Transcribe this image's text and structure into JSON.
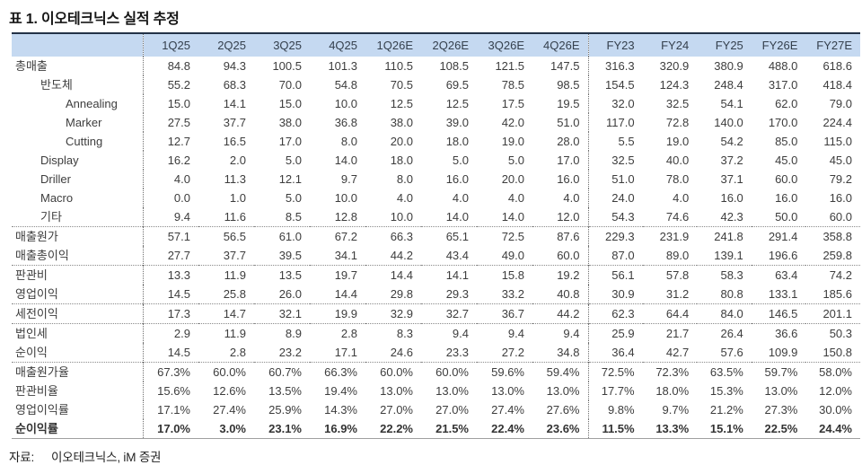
{
  "title": "표 1. 이오테크닉스 실적 추정",
  "colors": {
    "header_bg": "#c5d9f1",
    "top_border": "#233247"
  },
  "table": {
    "columns": [
      "",
      "1Q25",
      "2Q25",
      "3Q25",
      "4Q25",
      "1Q26E",
      "2Q26E",
      "3Q26E",
      "4Q26E",
      "FY23",
      "FY24",
      "FY25",
      "FY26E",
      "FY27E"
    ],
    "vertical_separator_after_columns": [
      0,
      8
    ],
    "rows": [
      {
        "label": "총매출",
        "indent": 0,
        "sep": false,
        "bold": false,
        "values": [
          "84.8",
          "94.3",
          "100.5",
          "101.3",
          "110.5",
          "108.5",
          "121.5",
          "147.5",
          "316.3",
          "320.9",
          "380.9",
          "488.0",
          "618.6"
        ]
      },
      {
        "label": "반도체",
        "indent": 1,
        "sep": false,
        "bold": false,
        "values": [
          "55.2",
          "68.3",
          "70.0",
          "54.8",
          "70.5",
          "69.5",
          "78.5",
          "98.5",
          "154.5",
          "124.3",
          "248.4",
          "317.0",
          "418.4"
        ]
      },
      {
        "label": "Annealing",
        "indent": 2,
        "sep": false,
        "bold": false,
        "values": [
          "15.0",
          "14.1",
          "15.0",
          "10.0",
          "12.5",
          "12.5",
          "17.5",
          "19.5",
          "32.0",
          "32.5",
          "54.1",
          "62.0",
          "79.0"
        ]
      },
      {
        "label": "Marker",
        "indent": 2,
        "sep": false,
        "bold": false,
        "values": [
          "27.5",
          "37.7",
          "38.0",
          "36.8",
          "38.0",
          "39.0",
          "42.0",
          "51.0",
          "117.0",
          "72.8",
          "140.0",
          "170.0",
          "224.4"
        ]
      },
      {
        "label": "Cutting",
        "indent": 2,
        "sep": false,
        "bold": false,
        "values": [
          "12.7",
          "16.5",
          "17.0",
          "8.0",
          "20.0",
          "18.0",
          "19.0",
          "28.0",
          "5.5",
          "19.0",
          "54.2",
          "85.0",
          "115.0"
        ]
      },
      {
        "label": "Display",
        "indent": 1,
        "sep": false,
        "bold": false,
        "values": [
          "16.2",
          "2.0",
          "5.0",
          "14.0",
          "18.0",
          "5.0",
          "5.0",
          "17.0",
          "32.5",
          "40.0",
          "37.2",
          "45.0",
          "45.0"
        ]
      },
      {
        "label": "Driller",
        "indent": 1,
        "sep": false,
        "bold": false,
        "values": [
          "4.0",
          "11.3",
          "12.1",
          "9.7",
          "8.0",
          "16.0",
          "20.0",
          "16.0",
          "51.0",
          "78.0",
          "37.1",
          "60.0",
          "79.2"
        ]
      },
      {
        "label": "Macro",
        "indent": 1,
        "sep": false,
        "bold": false,
        "values": [
          "0.0",
          "1.0",
          "5.0",
          "10.0",
          "4.0",
          "4.0",
          "4.0",
          "4.0",
          "24.0",
          "4.0",
          "16.0",
          "16.0",
          "16.0"
        ]
      },
      {
        "label": "기타",
        "indent": 1,
        "sep": false,
        "bold": false,
        "values": [
          "9.4",
          "11.6",
          "8.5",
          "12.8",
          "10.0",
          "14.0",
          "14.0",
          "12.0",
          "54.3",
          "74.6",
          "42.3",
          "50.0",
          "60.0"
        ]
      },
      {
        "label": "매출원가",
        "indent": 0,
        "sep": true,
        "bold": false,
        "values": [
          "57.1",
          "56.5",
          "61.0",
          "67.2",
          "66.3",
          "65.1",
          "72.5",
          "87.6",
          "229.3",
          "231.9",
          "241.8",
          "291.4",
          "358.8"
        ]
      },
      {
        "label": "매출총이익",
        "indent": 0,
        "sep": false,
        "bold": false,
        "values": [
          "27.7",
          "37.7",
          "39.5",
          "34.1",
          "44.2",
          "43.4",
          "49.0",
          "60.0",
          "87.0",
          "89.0",
          "139.1",
          "196.6",
          "259.8"
        ]
      },
      {
        "label": "판관비",
        "indent": 0,
        "sep": true,
        "bold": false,
        "values": [
          "13.3",
          "11.9",
          "13.5",
          "19.7",
          "14.4",
          "14.1",
          "15.8",
          "19.2",
          "56.1",
          "57.8",
          "58.3",
          "63.4",
          "74.2"
        ]
      },
      {
        "label": "영업이익",
        "indent": 0,
        "sep": false,
        "bold": false,
        "values": [
          "14.5",
          "25.8",
          "26.0",
          "14.4",
          "29.8",
          "29.3",
          "33.2",
          "40.8",
          "30.9",
          "31.2",
          "80.8",
          "133.1",
          "185.6"
        ]
      },
      {
        "label": "세전이익",
        "indent": 0,
        "sep": true,
        "bold": false,
        "values": [
          "17.3",
          "14.7",
          "32.1",
          "19.9",
          "32.9",
          "32.7",
          "36.7",
          "44.2",
          "62.3",
          "64.4",
          "84.0",
          "146.5",
          "201.1"
        ]
      },
      {
        "label": "법인세",
        "indent": 0,
        "sep": true,
        "bold": false,
        "values": [
          "2.9",
          "11.9",
          "8.9",
          "2.8",
          "8.3",
          "9.4",
          "9.4",
          "9.4",
          "25.9",
          "21.7",
          "26.4",
          "36.6",
          "50.3"
        ]
      },
      {
        "label": "순이익",
        "indent": 0,
        "sep": false,
        "bold": false,
        "values": [
          "14.5",
          "2.8",
          "23.2",
          "17.1",
          "24.6",
          "23.3",
          "27.2",
          "34.8",
          "36.4",
          "42.7",
          "57.6",
          "109.9",
          "150.8"
        ]
      },
      {
        "label": "매출원가율",
        "indent": 0,
        "sep": true,
        "bold": false,
        "values": [
          "67.3%",
          "60.0%",
          "60.7%",
          "66.3%",
          "60.0%",
          "60.0%",
          "59.6%",
          "59.4%",
          "72.5%",
          "72.3%",
          "63.5%",
          "59.7%",
          "58.0%"
        ]
      },
      {
        "label": "판관비율",
        "indent": 0,
        "sep": false,
        "bold": false,
        "values": [
          "15.6%",
          "12.6%",
          "13.5%",
          "19.4%",
          "13.0%",
          "13.0%",
          "13.0%",
          "13.0%",
          "17.7%",
          "18.0%",
          "15.3%",
          "13.0%",
          "12.0%"
        ]
      },
      {
        "label": "영업이익률",
        "indent": 0,
        "sep": false,
        "bold": false,
        "values": [
          "17.1%",
          "27.4%",
          "25.9%",
          "14.3%",
          "27.0%",
          "27.0%",
          "27.4%",
          "27.6%",
          "9.8%",
          "9.7%",
          "21.2%",
          "27.3%",
          "30.0%"
        ]
      },
      {
        "label": "순이익률",
        "indent": 0,
        "sep": false,
        "bold": true,
        "values": [
          "17.0%",
          "3.0%",
          "23.1%",
          "16.9%",
          "22.2%",
          "21.5%",
          "22.4%",
          "23.6%",
          "11.5%",
          "13.3%",
          "15.1%",
          "22.5%",
          "24.4%"
        ]
      }
    ]
  },
  "source": {
    "prefix": "자료:",
    "text": "이오테크닉스, iM 증권"
  }
}
